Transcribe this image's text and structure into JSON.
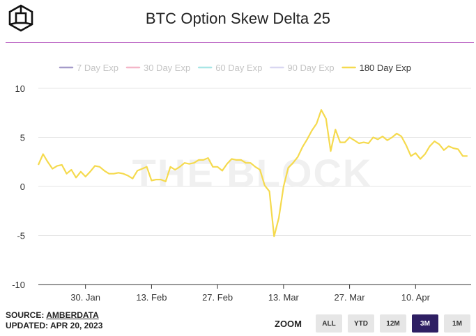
{
  "header": {
    "title": "BTC Option Skew Delta 25"
  },
  "chart_data": {
    "type": "line",
    "title": "BTC Option Skew Delta 25",
    "watermark": "THE BLOCK",
    "ylim": [
      -10,
      10
    ],
    "yticks": [
      10,
      5,
      0,
      -5,
      -10
    ],
    "xticks": [
      "30. Jan",
      "13. Feb",
      "27. Feb",
      "13. Mar",
      "27. Mar",
      "10. Apr"
    ],
    "xtick_dates": [
      "2023-01-30",
      "2023-02-13",
      "2023-02-27",
      "2023-03-13",
      "2023-03-27",
      "2023-04-10"
    ],
    "xlim": [
      "2023-01-20",
      "2023-04-20"
    ],
    "legend_position": "top",
    "grid": "horizontal",
    "series": [
      {
        "name": "7 Day Exp",
        "color": "#a59bc9",
        "visible": false,
        "values": []
      },
      {
        "name": "30 Day Exp",
        "color": "#f4b6c8",
        "visible": false,
        "values": []
      },
      {
        "name": "60 Day Exp",
        "color": "#a8e6e6",
        "visible": false,
        "values": []
      },
      {
        "name": "90 Day Exp",
        "color": "#d9d7f1",
        "visible": false,
        "values": []
      },
      {
        "name": "180 Day Exp",
        "color": "#f5da4e",
        "visible": true,
        "points": [
          [
            "2023-01-20",
            2.2
          ],
          [
            "2023-01-21",
            3.3
          ],
          [
            "2023-01-22",
            2.5
          ],
          [
            "2023-01-23",
            1.8
          ],
          [
            "2023-01-24",
            2.1
          ],
          [
            "2023-01-25",
            2.2
          ],
          [
            "2023-01-26",
            1.3
          ],
          [
            "2023-01-27",
            1.7
          ],
          [
            "2023-01-28",
            0.9
          ],
          [
            "2023-01-29",
            1.5
          ],
          [
            "2023-01-30",
            1.0
          ],
          [
            "2023-01-31",
            1.5
          ],
          [
            "2023-02-01",
            2.1
          ],
          [
            "2023-02-02",
            2.0
          ],
          [
            "2023-02-03",
            1.6
          ],
          [
            "2023-02-04",
            1.3
          ],
          [
            "2023-02-05",
            1.3
          ],
          [
            "2023-02-06",
            1.4
          ],
          [
            "2023-02-07",
            1.3
          ],
          [
            "2023-02-08",
            1.1
          ],
          [
            "2023-02-09",
            0.8
          ],
          [
            "2023-02-10",
            1.6
          ],
          [
            "2023-02-11",
            1.8
          ],
          [
            "2023-02-12",
            2.0
          ],
          [
            "2023-02-13",
            0.6
          ],
          [
            "2023-02-14",
            0.7
          ],
          [
            "2023-02-15",
            0.7
          ],
          [
            "2023-02-16",
            0.5
          ],
          [
            "2023-02-17",
            2.0
          ],
          [
            "2023-02-18",
            1.7
          ],
          [
            "2023-02-19",
            2.0
          ],
          [
            "2023-02-20",
            2.4
          ],
          [
            "2023-02-21",
            2.3
          ],
          [
            "2023-02-22",
            2.4
          ],
          [
            "2023-02-23",
            2.7
          ],
          [
            "2023-02-24",
            2.7
          ],
          [
            "2023-02-25",
            2.9
          ],
          [
            "2023-02-26",
            2.0
          ],
          [
            "2023-02-27",
            2.0
          ],
          [
            "2023-02-28",
            1.6
          ],
          [
            "2023-03-01",
            2.3
          ],
          [
            "2023-03-02",
            2.8
          ],
          [
            "2023-03-03",
            2.7
          ],
          [
            "2023-03-04",
            2.7
          ],
          [
            "2023-03-05",
            2.4
          ],
          [
            "2023-03-06",
            2.4
          ],
          [
            "2023-03-07",
            2.0
          ],
          [
            "2023-03-08",
            1.7
          ],
          [
            "2023-03-09",
            0.1
          ],
          [
            "2023-03-10",
            -0.5
          ],
          [
            "2023-03-11",
            -5.1
          ],
          [
            "2023-03-12",
            -3.2
          ],
          [
            "2023-03-13",
            0.0
          ],
          [
            "2023-03-14",
            1.9
          ],
          [
            "2023-03-15",
            2.4
          ],
          [
            "2023-03-16",
            3.0
          ],
          [
            "2023-03-17",
            4.0
          ],
          [
            "2023-03-18",
            4.8
          ],
          [
            "2023-03-19",
            5.7
          ],
          [
            "2023-03-20",
            6.4
          ],
          [
            "2023-03-21",
            7.8
          ],
          [
            "2023-03-22",
            6.9
          ],
          [
            "2023-03-23",
            3.6
          ],
          [
            "2023-03-24",
            5.8
          ],
          [
            "2023-03-25",
            4.5
          ],
          [
            "2023-03-26",
            4.5
          ],
          [
            "2023-03-27",
            5.0
          ],
          [
            "2023-03-28",
            4.7
          ],
          [
            "2023-03-29",
            4.4
          ],
          [
            "2023-03-30",
            4.5
          ],
          [
            "2023-03-31",
            4.4
          ],
          [
            "2023-04-01",
            5.0
          ],
          [
            "2023-04-02",
            4.8
          ],
          [
            "2023-04-03",
            5.1
          ],
          [
            "2023-04-04",
            4.7
          ],
          [
            "2023-04-05",
            5.0
          ],
          [
            "2023-04-06",
            5.4
          ],
          [
            "2023-04-07",
            5.1
          ],
          [
            "2023-04-08",
            4.2
          ],
          [
            "2023-04-09",
            3.1
          ],
          [
            "2023-04-10",
            3.4
          ],
          [
            "2023-04-11",
            2.8
          ],
          [
            "2023-04-12",
            3.3
          ],
          [
            "2023-04-13",
            4.1
          ],
          [
            "2023-04-14",
            4.6
          ],
          [
            "2023-04-15",
            4.3
          ],
          [
            "2023-04-16",
            3.7
          ],
          [
            "2023-04-17",
            4.1
          ],
          [
            "2023-04-18",
            3.9
          ],
          [
            "2023-04-19",
            3.8
          ],
          [
            "2023-04-20",
            3.1
          ],
          [
            "2023-04-21",
            3.1
          ]
        ]
      }
    ]
  },
  "footer": {
    "source_label": "SOURCE: ",
    "source_name": "AMBERDATA",
    "updated": "UPDATED: APR 20, 2023"
  },
  "zoom": {
    "label": "ZOOM",
    "buttons": [
      "ALL",
      "YTD",
      "12M",
      "3M",
      "1M"
    ],
    "active": "3M"
  }
}
